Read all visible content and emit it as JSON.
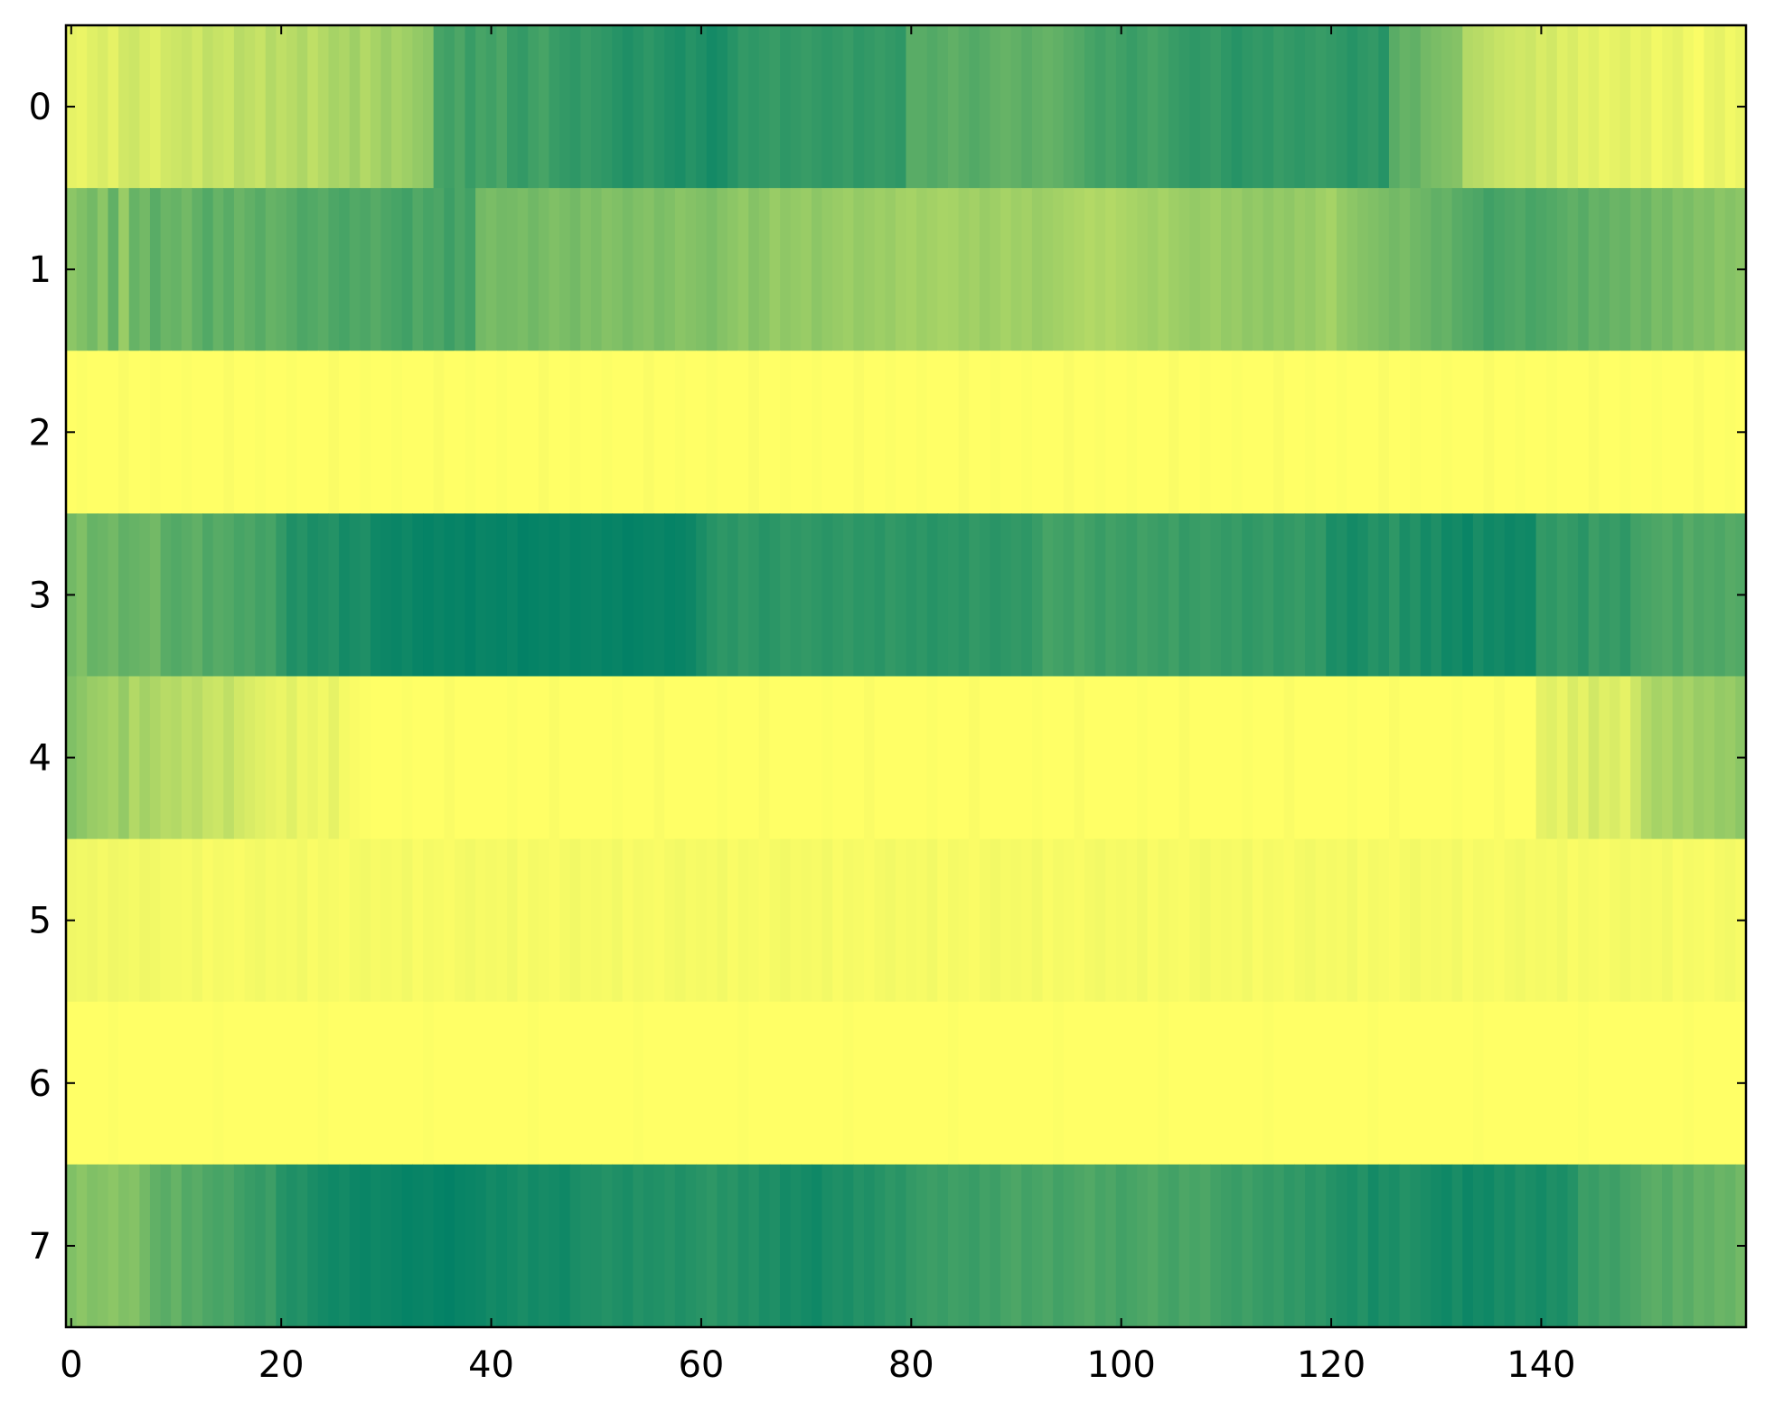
{
  "chart_data": {
    "type": "heatmap",
    "colors": [
      "#ffff66",
      "#008066"
    ],
    "vlim": [
      0,
      1
    ],
    "xlim": [
      -0.5,
      159.5
    ],
    "xticks": [
      0,
      20,
      40,
      60,
      80,
      100,
      120,
      140
    ],
    "ylim": [
      7.5,
      -0.5
    ],
    "yticks": [
      0,
      1,
      2,
      3,
      4,
      5,
      6,
      7
    ],
    "z": [
      [
        0.1,
        0.08,
        0.12,
        0.15,
        0.1,
        0.18,
        0.2,
        0.15,
        0.12,
        0.18,
        0.2,
        0.22,
        0.18,
        0.25,
        0.22,
        0.2,
        0.28,
        0.25,
        0.22,
        0.3,
        0.25,
        0.28,
        0.32,
        0.25,
        0.3,
        0.35,
        0.32,
        0.38,
        0.3,
        0.35,
        0.4,
        0.35,
        0.38,
        0.42,
        0.45,
        0.72,
        0.75,
        0.7,
        0.78,
        0.72,
        0.75,
        0.7,
        0.78,
        0.8,
        0.75,
        0.72,
        0.78,
        0.8,
        0.82,
        0.78,
        0.8,
        0.82,
        0.85,
        0.88,
        0.85,
        0.82,
        0.85,
        0.88,
        0.9,
        0.85,
        0.88,
        0.92,
        0.9,
        0.85,
        0.8,
        0.82,
        0.8,
        0.78,
        0.82,
        0.8,
        0.78,
        0.8,
        0.82,
        0.8,
        0.78,
        0.82,
        0.8,
        0.78,
        0.8,
        0.82,
        0.65,
        0.65,
        0.68,
        0.65,
        0.62,
        0.65,
        0.68,
        0.65,
        0.62,
        0.6,
        0.62,
        0.65,
        0.62,
        0.6,
        0.62,
        0.65,
        0.68,
        0.72,
        0.75,
        0.72,
        0.75,
        0.78,
        0.75,
        0.72,
        0.75,
        0.78,
        0.8,
        0.82,
        0.8,
        0.78,
        0.82,
        0.85,
        0.82,
        0.8,
        0.82,
        0.78,
        0.8,
        0.82,
        0.8,
        0.78,
        0.8,
        0.82,
        0.85,
        0.82,
        0.8,
        0.85,
        0.65,
        0.6,
        0.62,
        0.55,
        0.52,
        0.5,
        0.48,
        0.3,
        0.28,
        0.25,
        0.22,
        0.2,
        0.18,
        0.2,
        0.15,
        0.18,
        0.12,
        0.15,
        0.1,
        0.12,
        0.08,
        0.1,
        0.12,
        0.08,
        0.1,
        0.05,
        0.08,
        0.1,
        0.05,
        0.02,
        0.08,
        0.1,
        0.05,
        0.08
      ],
      [
        0.45,
        0.5,
        0.55,
        0.45,
        0.62,
        0.4,
        0.6,
        0.55,
        0.65,
        0.58,
        0.6,
        0.55,
        0.62,
        0.68,
        0.6,
        0.65,
        0.58,
        0.62,
        0.66,
        0.6,
        0.62,
        0.65,
        0.7,
        0.68,
        0.65,
        0.7,
        0.72,
        0.68,
        0.7,
        0.66,
        0.7,
        0.72,
        0.75,
        0.68,
        0.72,
        0.7,
        0.76,
        0.7,
        0.74,
        0.55,
        0.52,
        0.55,
        0.54,
        0.52,
        0.56,
        0.53,
        0.5,
        0.52,
        0.55,
        0.5,
        0.52,
        0.48,
        0.5,
        0.53,
        0.5,
        0.48,
        0.52,
        0.5,
        0.46,
        0.48,
        0.5,
        0.52,
        0.48,
        0.45,
        0.42,
        0.48,
        0.45,
        0.4,
        0.44,
        0.42,
        0.4,
        0.45,
        0.42,
        0.4,
        0.38,
        0.42,
        0.4,
        0.38,
        0.4,
        0.36,
        0.35,
        0.38,
        0.36,
        0.34,
        0.35,
        0.38,
        0.36,
        0.4,
        0.38,
        0.35,
        0.38,
        0.36,
        0.4,
        0.38,
        0.36,
        0.34,
        0.32,
        0.3,
        0.32,
        0.3,
        0.32,
        0.34,
        0.36,
        0.38,
        0.35,
        0.38,
        0.4,
        0.42,
        0.4,
        0.38,
        0.42,
        0.4,
        0.44,
        0.42,
        0.45,
        0.42,
        0.44,
        0.4,
        0.42,
        0.38,
        0.35,
        0.42,
        0.45,
        0.48,
        0.5,
        0.52,
        0.55,
        0.52,
        0.56,
        0.58,
        0.62,
        0.6,
        0.65,
        0.68,
        0.7,
        0.75,
        0.72,
        0.7,
        0.68,
        0.72,
        0.7,
        0.68,
        0.65,
        0.62,
        0.66,
        0.6,
        0.62,
        0.58,
        0.6,
        0.55,
        0.58,
        0.52,
        0.55,
        0.5,
        0.52,
        0.48,
        0.5,
        0.45,
        0.48,
        0.45
      ],
      [
        0,
        0.01,
        0,
        0,
        0,
        0.02,
        0,
        0,
        0.01,
        0,
        0,
        0.01,
        0,
        0,
        0,
        0.02,
        0,
        0,
        0.01,
        0,
        0,
        0.01,
        0,
        0,
        0,
        0.02,
        0,
        0,
        0.01,
        0,
        0,
        0.01,
        0,
        0,
        0,
        0.02,
        0,
        0,
        0.01,
        0,
        0,
        0.01,
        0,
        0,
        0,
        0.02,
        0,
        0,
        0.01,
        0,
        0,
        0.01,
        0,
        0,
        0,
        0.02,
        0,
        0,
        0.01,
        0,
        0,
        0.01,
        0,
        0,
        0,
        0.02,
        0,
        0,
        0.01,
        0,
        0,
        0.01,
        0,
        0,
        0,
        0.02,
        0,
        0,
        0.01,
        0,
        0,
        0.01,
        0,
        0,
        0,
        0.02,
        0,
        0,
        0.01,
        0,
        0,
        0.01,
        0,
        0,
        0,
        0.02,
        0,
        0,
        0.01,
        0,
        0,
        0.01,
        0,
        0,
        0,
        0.02,
        0,
        0,
        0.01,
        0,
        0,
        0.01,
        0,
        0,
        0,
        0.02,
        0,
        0,
        0.01,
        0,
        0,
        0.01,
        0,
        0,
        0,
        0.02,
        0,
        0,
        0.01,
        0,
        0,
        0.01,
        0,
        0,
        0,
        0.02,
        0,
        0,
        0.01,
        0,
        0,
        0.01,
        0,
        0,
        0,
        0.02,
        0,
        0,
        0.01,
        0,
        0,
        0.01,
        0,
        0,
        0,
        0.02,
        0,
        0,
        0.01,
        0
      ],
      [
        0.55,
        0.5,
        0.6,
        0.58,
        0.55,
        0.62,
        0.6,
        0.58,
        0.55,
        0.65,
        0.68,
        0.65,
        0.62,
        0.7,
        0.66,
        0.68,
        0.72,
        0.7,
        0.74,
        0.72,
        0.8,
        0.88,
        0.85,
        0.9,
        0.88,
        0.86,
        0.92,
        0.9,
        0.88,
        0.94,
        0.95,
        0.96,
        0.94,
        0.97,
        0.98,
        0.96,
        0.98,
        0.97,
        0.99,
        0.96,
        0.97,
        0.98,
        0.96,
        0.99,
        0.98,
        0.97,
        0.98,
        0.96,
        0.98,
        0.97,
        0.96,
        0.98,
        0.97,
        0.99,
        0.98,
        0.97,
        0.96,
        0.98,
        0.97,
        0.95,
        0.9,
        0.85,
        0.82,
        0.84,
        0.8,
        0.82,
        0.85,
        0.83,
        0.8,
        0.82,
        0.8,
        0.82,
        0.84,
        0.82,
        0.8,
        0.83,
        0.82,
        0.84,
        0.8,
        0.82,
        0.84,
        0.82,
        0.85,
        0.83,
        0.82,
        0.84,
        0.8,
        0.82,
        0.84,
        0.82,
        0.8,
        0.82,
        0.78,
        0.72,
        0.74,
        0.76,
        0.72,
        0.75,
        0.78,
        0.74,
        0.76,
        0.78,
        0.74,
        0.76,
        0.78,
        0.75,
        0.8,
        0.78,
        0.76,
        0.78,
        0.8,
        0.78,
        0.82,
        0.8,
        0.78,
        0.82,
        0.8,
        0.78,
        0.82,
        0.8,
        0.9,
        0.88,
        0.92,
        0.9,
        0.85,
        0.88,
        0.82,
        0.9,
        0.86,
        0.92,
        0.88,
        0.94,
        0.92,
        0.96,
        0.9,
        0.94,
        0.92,
        0.95,
        0.93,
        0.94,
        0.8,
        0.82,
        0.78,
        0.8,
        0.84,
        0.76,
        0.8,
        0.78,
        0.82,
        0.74,
        0.72,
        0.7,
        0.68,
        0.72,
        0.66,
        0.7,
        0.68,
        0.7,
        0.66,
        0.68
      ],
      [
        0.5,
        0.45,
        0.4,
        0.38,
        0.35,
        0.42,
        0.3,
        0.36,
        0.32,
        0.28,
        0.3,
        0.25,
        0.28,
        0.22,
        0.2,
        0.25,
        0.18,
        0.15,
        0.12,
        0.1,
        0.08,
        0.12,
        0.06,
        0.08,
        0.05,
        0.1,
        0.04,
        0.02,
        0.01,
        0,
        0,
        0,
        0.01,
        0,
        0,
        0,
        0.02,
        0,
        0,
        0,
        0,
        0,
        0.01,
        0,
        0,
        0,
        0.02,
        0,
        0,
        0,
        0,
        0,
        0.01,
        0,
        0,
        0,
        0.02,
        0,
        0,
        0,
        0,
        0,
        0.01,
        0,
        0,
        0,
        0.02,
        0,
        0,
        0,
        0,
        0,
        0.01,
        0,
        0,
        0,
        0.02,
        0,
        0,
        0,
        0,
        0,
        0.01,
        0,
        0,
        0,
        0.02,
        0,
        0,
        0,
        0,
        0,
        0.01,
        0,
        0,
        0,
        0.02,
        0,
        0,
        0,
        0,
        0,
        0.01,
        0,
        0,
        0,
        0.02,
        0,
        0,
        0,
        0,
        0,
        0.01,
        0,
        0,
        0,
        0.02,
        0,
        0,
        0,
        0,
        0,
        0.01,
        0,
        0,
        0,
        0.02,
        0,
        0,
        0,
        0,
        0,
        0.01,
        0,
        0,
        0,
        0.02,
        0,
        0,
        0,
        0.1,
        0.12,
        0.08,
        0.15,
        0.1,
        0.18,
        0.12,
        0.15,
        0.1,
        0.2,
        0.3,
        0.35,
        0.32,
        0.38,
        0.35,
        0.4,
        0.38,
        0.42,
        0.4,
        0.45
      ],
      [
        0.06,
        0.05,
        0.06,
        0.04,
        0.06,
        0.05,
        0.04,
        0.06,
        0.05,
        0.04,
        0.04,
        0.03,
        0.05,
        0.02,
        0.04,
        0.03,
        0.02,
        0.04,
        0.05,
        0.03,
        0.04,
        0.03,
        0.05,
        0.02,
        0.04,
        0.03,
        0.02,
        0.04,
        0.05,
        0.03,
        0.04,
        0.03,
        0.05,
        0.02,
        0.04,
        0.03,
        0.02,
        0.04,
        0.05,
        0.03,
        0.04,
        0.03,
        0.05,
        0.02,
        0.04,
        0.03,
        0.02,
        0.04,
        0.05,
        0.03,
        0.04,
        0.03,
        0.05,
        0.02,
        0.04,
        0.03,
        0.02,
        0.04,
        0.05,
        0.03,
        0.04,
        0.03,
        0.05,
        0.02,
        0.04,
        0.03,
        0.02,
        0.04,
        0.05,
        0.03,
        0.04,
        0.03,
        0.05,
        0.02,
        0.04,
        0.03,
        0.02,
        0.04,
        0.05,
        0.03,
        0.04,
        0.03,
        0.05,
        0.02,
        0.04,
        0.03,
        0.02,
        0.04,
        0.05,
        0.03,
        0.04,
        0.03,
        0.05,
        0.02,
        0.04,
        0.03,
        0.02,
        0.04,
        0.05,
        0.03,
        0.04,
        0.03,
        0.05,
        0.02,
        0.04,
        0.03,
        0.02,
        0.04,
        0.05,
        0.03,
        0.04,
        0.03,
        0.05,
        0.02,
        0.04,
        0.03,
        0.02,
        0.04,
        0.05,
        0.03,
        0.04,
        0.03,
        0.05,
        0.02,
        0.04,
        0.03,
        0.02,
        0.04,
        0.05,
        0.03,
        0.04,
        0.03,
        0.05,
        0.02,
        0.04,
        0.03,
        0.02,
        0.04,
        0.05,
        0.03,
        0.04,
        0.03,
        0.05,
        0.02,
        0.04,
        0.03,
        0.02,
        0.04,
        0.05,
        0.03,
        0.04,
        0.03,
        0.05,
        0.02,
        0.04,
        0.03,
        0.02,
        0.04,
        0.05,
        0.03
      ],
      [
        0,
        0,
        0,
        0,
        0.01,
        0,
        0,
        0,
        0,
        0,
        0,
        0,
        0,
        0,
        0.01,
        0,
        0,
        0,
        0,
        0,
        0,
        0,
        0,
        0,
        0.01,
        0,
        0,
        0,
        0,
        0,
        0,
        0,
        0,
        0,
        0.01,
        0,
        0,
        0,
        0,
        0,
        0,
        0,
        0,
        0,
        0.01,
        0,
        0,
        0,
        0,
        0,
        0,
        0,
        0,
        0,
        0.01,
        0,
        0,
        0,
        0,
        0,
        0,
        0,
        0,
        0,
        0.01,
        0,
        0,
        0,
        0,
        0,
        0,
        0,
        0,
        0,
        0.01,
        0,
        0,
        0,
        0,
        0,
        0,
        0,
        0,
        0,
        0.01,
        0,
        0,
        0,
        0,
        0,
        0,
        0,
        0,
        0,
        0.01,
        0,
        0,
        0,
        0,
        0,
        0,
        0,
        0,
        0,
        0.01,
        0,
        0,
        0,
        0,
        0,
        0,
        0,
        0,
        0,
        0.01,
        0,
        0,
        0,
        0,
        0,
        0,
        0,
        0,
        0,
        0.01,
        0,
        0,
        0,
        0,
        0,
        0,
        0,
        0,
        0,
        0.01,
        0,
        0,
        0,
        0,
        0,
        0,
        0,
        0,
        0,
        0.01,
        0,
        0,
        0,
        0,
        0,
        0,
        0,
        0,
        0,
        0.01,
        0,
        0,
        0,
        0,
        0
      ],
      [
        0.5,
        0.45,
        0.5,
        0.48,
        0.45,
        0.5,
        0.48,
        0.55,
        0.62,
        0.65,
        0.6,
        0.68,
        0.65,
        0.7,
        0.72,
        0.7,
        0.75,
        0.78,
        0.8,
        0.76,
        0.85,
        0.88,
        0.86,
        0.9,
        0.92,
        0.94,
        0.92,
        0.95,
        0.96,
        0.94,
        0.95,
        0.96,
        0.98,
        0.97,
        0.96,
        0.98,
        0.99,
        0.97,
        0.96,
        0.95,
        0.92,
        0.94,
        0.92,
        0.9,
        0.93,
        0.91,
        0.92,
        0.94,
        0.9,
        0.88,
        0.88,
        0.86,
        0.88,
        0.9,
        0.86,
        0.88,
        0.87,
        0.85,
        0.88,
        0.86,
        0.84,
        0.82,
        0.86,
        0.84,
        0.88,
        0.86,
        0.9,
        0.88,
        0.92,
        0.9,
        0.92,
        0.94,
        0.9,
        0.88,
        0.9,
        0.86,
        0.88,
        0.85,
        0.82,
        0.84,
        0.8,
        0.78,
        0.76,
        0.78,
        0.75,
        0.76,
        0.78,
        0.74,
        0.76,
        0.72,
        0.7,
        0.74,
        0.72,
        0.7,
        0.74,
        0.72,
        0.7,
        0.68,
        0.72,
        0.7,
        0.74,
        0.72,
        0.7,
        0.68,
        0.72,
        0.74,
        0.7,
        0.72,
        0.7,
        0.74,
        0.76,
        0.78,
        0.75,
        0.78,
        0.8,
        0.78,
        0.82,
        0.8,
        0.84,
        0.82,
        0.86,
        0.88,
        0.9,
        0.86,
        0.92,
        0.88,
        0.9,
        0.86,
        0.88,
        0.9,
        0.92,
        0.94,
        0.9,
        0.95,
        0.92,
        0.94,
        0.9,
        0.92,
        0.88,
        0.9,
        0.92,
        0.88,
        0.9,
        0.86,
        0.76,
        0.78,
        0.74,
        0.76,
        0.72,
        0.7,
        0.66,
        0.64,
        0.68,
        0.62,
        0.65,
        0.6,
        0.62,
        0.58,
        0.6,
        0.55
      ]
    ]
  }
}
